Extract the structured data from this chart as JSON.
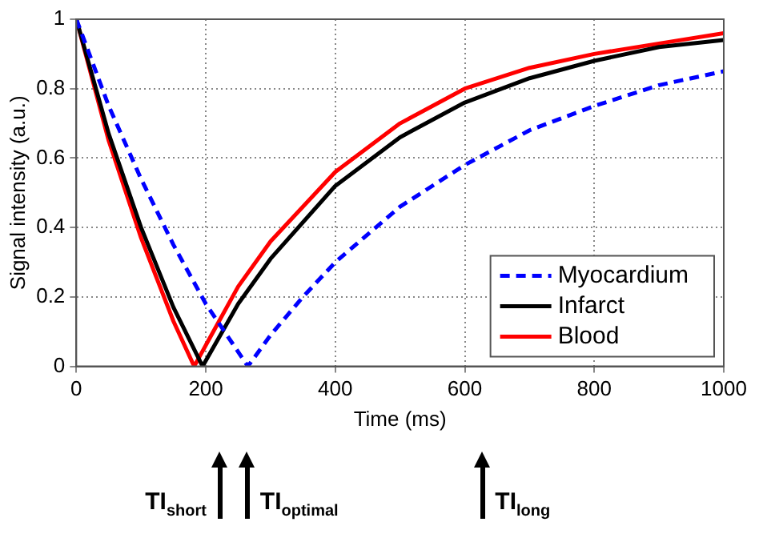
{
  "chart_data": {
    "type": "line",
    "xlabel": "Time (ms)",
    "ylabel": "Signal intensity (a.u.)",
    "xlim": [
      0,
      1000
    ],
    "xticks": [
      0,
      200,
      400,
      600,
      800,
      1000
    ],
    "ylim": [
      0,
      1
    ],
    "yticks": [
      0,
      0.2,
      0.4,
      0.6,
      0.8,
      1
    ],
    "grid": true,
    "legend": "bottom right",
    "marker": "none",
    "series": [
      {
        "name": "Myocardium",
        "color": "#0000ff",
        "line_style": "dashed",
        "x": [
          0,
          50,
          100,
          150,
          200,
          265,
          300,
          350,
          400,
          500,
          600,
          700,
          800,
          900,
          1000
        ],
        "values": [
          1,
          0.75,
          0.54,
          0.35,
          0.18,
          0,
          0.09,
          0.2,
          0.3,
          0.46,
          0.58,
          0.68,
          0.75,
          0.81,
          0.85
        ]
      },
      {
        "name": "Infarct",
        "color": "#000000",
        "line_style": "solid",
        "x": [
          0,
          50,
          100,
          150,
          195,
          250,
          300,
          400,
          500,
          600,
          700,
          800,
          900,
          1000
        ],
        "values": [
          1,
          0.67,
          0.4,
          0.17,
          0,
          0.18,
          0.31,
          0.52,
          0.66,
          0.76,
          0.83,
          0.88,
          0.92,
          0.94
        ]
      },
      {
        "name": "Blood",
        "color": "#ff0000",
        "line_style": "solid",
        "x": [
          0,
          50,
          100,
          150,
          182,
          250,
          300,
          400,
          500,
          600,
          700,
          800,
          900,
          1000
        ],
        "values": [
          1,
          0.65,
          0.37,
          0.13,
          0,
          0.23,
          0.36,
          0.56,
          0.7,
          0.8,
          0.86,
          0.9,
          0.93,
          0.96
        ]
      }
    ],
    "annotations": [
      "TI$_{short}$",
      "TI$_{optimal}$",
      "TI$_{long}$"
    ]
  }
}
